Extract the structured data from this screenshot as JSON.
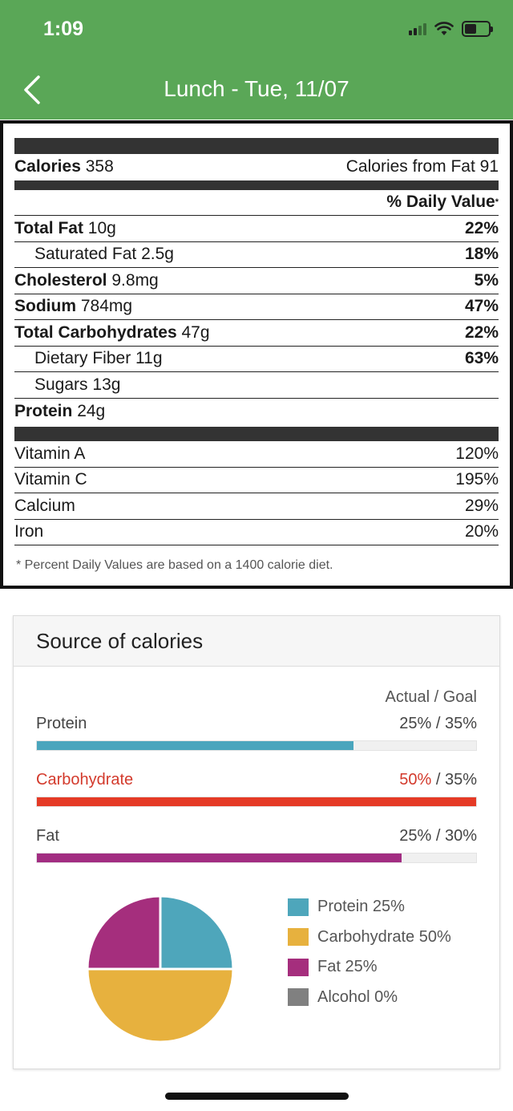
{
  "status": {
    "time": "1:09"
  },
  "header": {
    "title": "Lunch - Tue, 11/07"
  },
  "label": {
    "calories_label": "Calories",
    "calories_value": "358",
    "calories_from_fat": "Calories from Fat 91",
    "dv_header": "% Daily Value",
    "rows": [
      {
        "name": "Total Fat",
        "amount": "10g",
        "dv": "22%"
      },
      {
        "name": "Saturated Fat",
        "amount": "2.5g",
        "dv": "18%"
      },
      {
        "name": "Cholesterol",
        "amount": "9.8mg",
        "dv": "5%"
      },
      {
        "name": "Sodium",
        "amount": "784mg",
        "dv": "47%"
      },
      {
        "name": "Total Carbohydrates",
        "amount": "47g",
        "dv": "22%"
      },
      {
        "name": "Dietary Fiber",
        "amount": "11g",
        "dv": "63%"
      },
      {
        "name": "Sugars",
        "amount": "13g"
      },
      {
        "name": "Protein",
        "amount": "24g"
      }
    ],
    "vitamins": [
      {
        "name": "Vitamin A",
        "dv": "120%"
      },
      {
        "name": "Vitamin C",
        "dv": "195%"
      },
      {
        "name": "Calcium",
        "dv": "29%"
      },
      {
        "name": "Iron",
        "dv": "20%"
      }
    ],
    "footnote": "* Percent Daily Values are based on a 1400 calorie diet."
  },
  "sources": {
    "title": "Source of calories",
    "actual_goal_header": "Actual / Goal",
    "macros": [
      {
        "name": "Protein",
        "actual": "25%",
        "goal": "35%",
        "progress": 0.72,
        "color": "#4aa5bd"
      },
      {
        "name": "Carbohydrate",
        "actual": "50%",
        "goal": "35%",
        "progress": 1.0,
        "color": "#e53a26"
      },
      {
        "name": "Fat",
        "actual": "25%",
        "goal": "30%",
        "progress": 0.83,
        "color": "#a22d82"
      }
    ],
    "legend": [
      {
        "label": "Protein 25%",
        "color": "#4ea6bb"
      },
      {
        "label": "Carbohydrate 50%",
        "color": "#e7b13e"
      },
      {
        "label": "Fat 25%",
        "color": "#a52e7d"
      },
      {
        "label": "Alcohol 0%",
        "color": "#808080"
      }
    ]
  },
  "chart_data": {
    "type": "pie",
    "categories": [
      "Protein",
      "Carbohydrate",
      "Fat",
      "Alcohol"
    ],
    "values": [
      25,
      50,
      25,
      0
    ],
    "colors": [
      "#4ea6bb",
      "#e7b13e",
      "#a52e7d",
      "#808080"
    ]
  }
}
